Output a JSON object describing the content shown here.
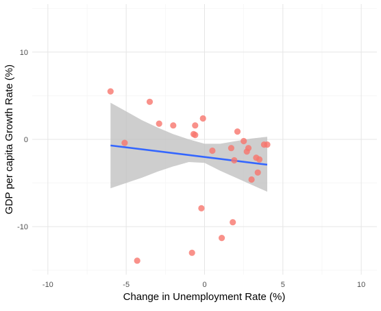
{
  "chart_data": {
    "type": "scatter",
    "title": "",
    "xlabel": "Change in Unemployment Rate (%)",
    "ylabel": "GDP per capita Growth Rate (%)",
    "xlim": [
      -11,
      11
    ],
    "ylim": [
      -15.5,
      15.5
    ],
    "x_ticks": [
      -10,
      -5,
      0,
      5,
      10
    ],
    "x_tick_labels": [
      "-10",
      "-5",
      "0",
      "5",
      "10"
    ],
    "y_ticks": [
      -10,
      0,
      10
    ],
    "y_tick_labels": [
      "-10",
      "0",
      "10"
    ],
    "grid": true,
    "legend": "none",
    "points": [
      {
        "x": -6.0,
        "y": 5.5
      },
      {
        "x": -5.1,
        "y": -0.4
      },
      {
        "x": -4.3,
        "y": -13.9
      },
      {
        "x": -3.5,
        "y": 4.3
      },
      {
        "x": -2.9,
        "y": 1.8
      },
      {
        "x": -2.0,
        "y": 1.6
      },
      {
        "x": -0.8,
        "y": -13.0
      },
      {
        "x": -0.7,
        "y": 0.6
      },
      {
        "x": -0.6,
        "y": 0.5
      },
      {
        "x": -0.6,
        "y": 1.6
      },
      {
        "x": -0.2,
        "y": -7.9
      },
      {
        "x": -0.1,
        "y": 2.4
      },
      {
        "x": 0.5,
        "y": -1.3
      },
      {
        "x": 1.1,
        "y": -11.3
      },
      {
        "x": 1.7,
        "y": -1.0
      },
      {
        "x": 1.8,
        "y": -9.5
      },
      {
        "x": 1.9,
        "y": -2.4
      },
      {
        "x": 2.1,
        "y": 0.9
      },
      {
        "x": 2.5,
        "y": -0.2
      },
      {
        "x": 2.7,
        "y": -1.4
      },
      {
        "x": 2.8,
        "y": -1.0
      },
      {
        "x": 3.0,
        "y": -4.6
      },
      {
        "x": 3.3,
        "y": -2.1
      },
      {
        "x": 3.4,
        "y": -3.8
      },
      {
        "x": 3.5,
        "y": -2.3
      },
      {
        "x": 3.8,
        "y": -0.6
      },
      {
        "x": 4.0,
        "y": -0.6
      }
    ],
    "trend_line": {
      "x": [
        -6.0,
        4.0
      ],
      "y": [
        -0.7,
        -2.9
      ]
    },
    "confidence_band": {
      "x": [
        -6.0,
        -5.0,
        -4.0,
        -3.0,
        -2.0,
        -1.0,
        0.0,
        1.0,
        2.0,
        3.0,
        4.0
      ],
      "upper": [
        4.2,
        3.2,
        2.2,
        1.35,
        0.6,
        0.0,
        -0.5,
        -0.5,
        -0.2,
        0.1,
        0.3
      ],
      "lower": [
        -5.6,
        -5.0,
        -4.4,
        -3.7,
        -3.1,
        -2.6,
        -2.7,
        -3.6,
        -4.4,
        -5.2,
        -6.0
      ]
    },
    "colors": {
      "points": "#f8766d",
      "trend_line": "#3366ff",
      "confidence_band": "#bebebe",
      "grid_major": "#e5e5e5",
      "grid_minor": "#f2f2f2"
    }
  }
}
